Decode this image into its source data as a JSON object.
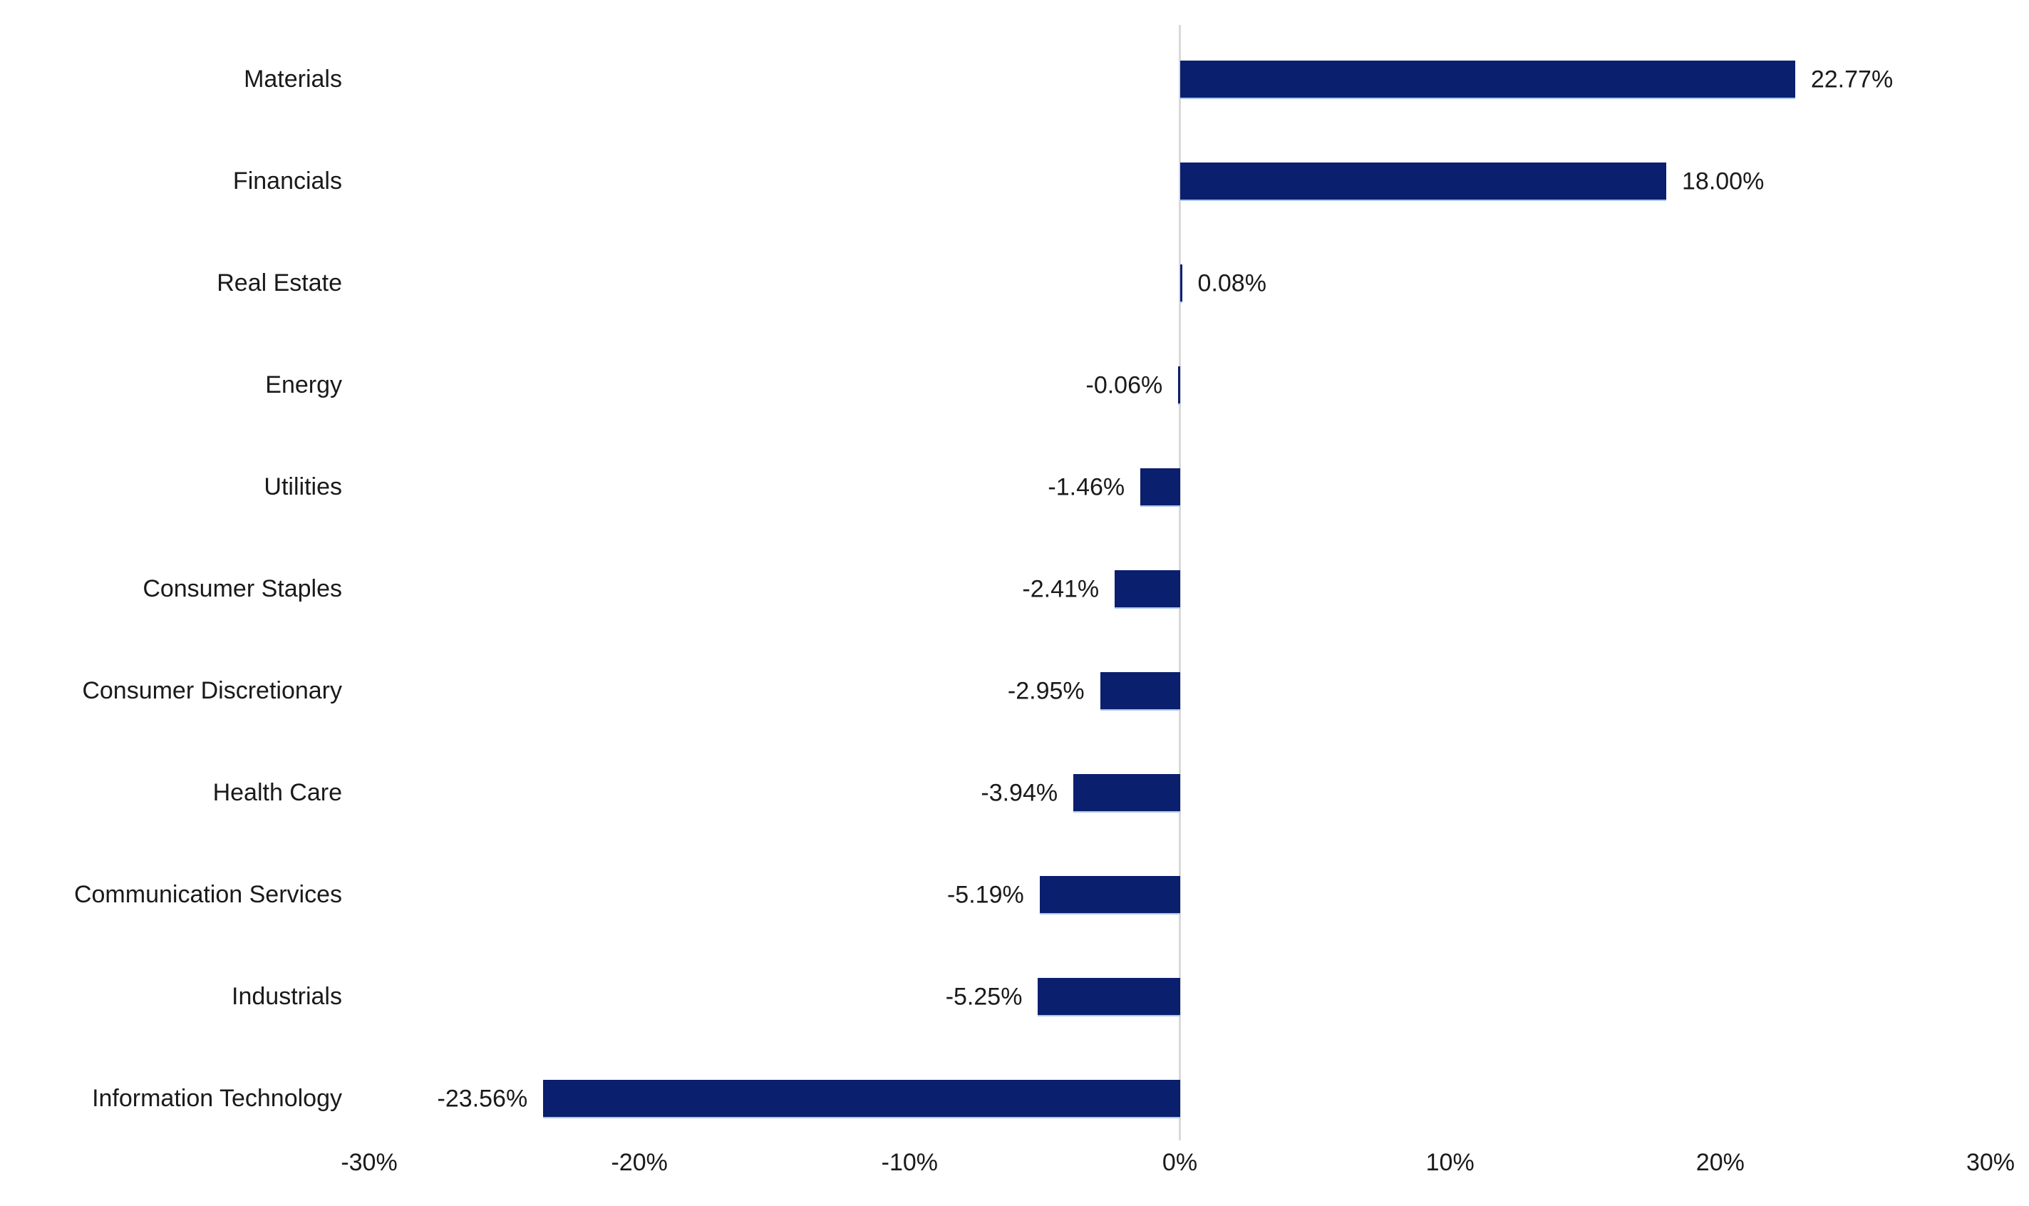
{
  "chart_data": {
    "type": "bar",
    "orientation": "horizontal",
    "title": "",
    "xlabel": "",
    "ylabel": "",
    "xlim": [
      -30,
      30
    ],
    "grid": false,
    "legend": false,
    "categories": [
      "Materials",
      "Financials",
      "Real Estate",
      "Energy",
      "Utilities",
      "Consumer Staples",
      "Consumer Discretionary",
      "Health Care",
      "Communication Services",
      "Industrials",
      "Information Technology"
    ],
    "values": [
      22.77,
      18.0,
      0.08,
      -0.06,
      -1.46,
      -2.41,
      -2.95,
      -3.94,
      -5.19,
      -5.25,
      -23.56
    ],
    "data_labels": [
      "22.77%",
      "18.00%",
      "0.08%",
      "-0.06%",
      "-1.46%",
      "-2.41%",
      "-2.95%",
      "-3.94%",
      "-5.19%",
      "-5.25%",
      "-23.56%"
    ],
    "x_ticks": [
      "-30%",
      "-20%",
      "-10%",
      "0%",
      "10%",
      "20%",
      "30%"
    ],
    "colors": {
      "bar_fill": "#0B1F6F",
      "bar_edge": "#A9C7E9",
      "axis_line": "#D9D9D9",
      "text": "#1a1a1a",
      "background": "#FFFFFF"
    }
  }
}
